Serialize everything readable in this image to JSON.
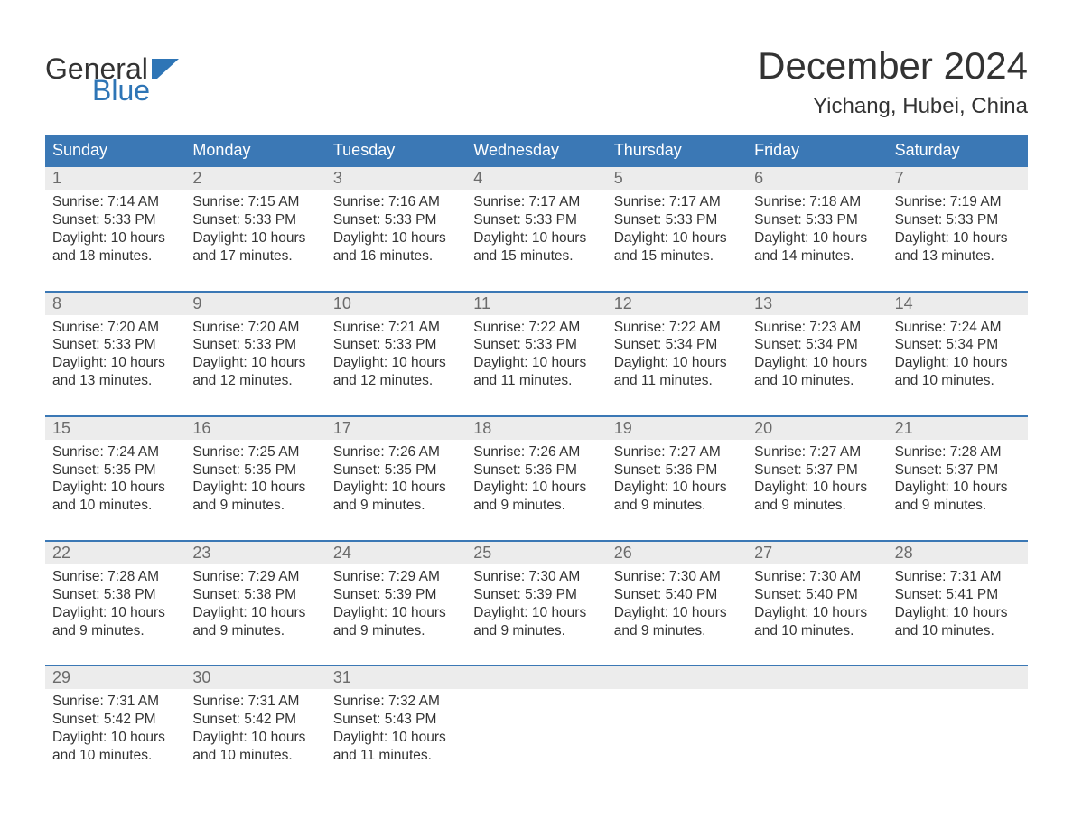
{
  "brand": {
    "general": "General",
    "blue": "Blue"
  },
  "title": "December 2024",
  "location": "Yichang, Hubei, China",
  "colors": {
    "header_bg": "#3b78b5",
    "header_text": "#ffffff",
    "daynum_bg": "#ececec",
    "daynum_text": "#6b6b6b",
    "body_text": "#333333",
    "accent": "#2e75b6",
    "week_border": "#3b78b5"
  },
  "weekdays": [
    "Sunday",
    "Monday",
    "Tuesday",
    "Wednesday",
    "Thursday",
    "Friday",
    "Saturday"
  ],
  "days": [
    {
      "n": 1,
      "sunrise": "Sunrise: 7:14 AM",
      "sunset": "Sunset: 5:33 PM",
      "day1": "Daylight: 10 hours",
      "day2": "and 18 minutes."
    },
    {
      "n": 2,
      "sunrise": "Sunrise: 7:15 AM",
      "sunset": "Sunset: 5:33 PM",
      "day1": "Daylight: 10 hours",
      "day2": "and 17 minutes."
    },
    {
      "n": 3,
      "sunrise": "Sunrise: 7:16 AM",
      "sunset": "Sunset: 5:33 PM",
      "day1": "Daylight: 10 hours",
      "day2": "and 16 minutes."
    },
    {
      "n": 4,
      "sunrise": "Sunrise: 7:17 AM",
      "sunset": "Sunset: 5:33 PM",
      "day1": "Daylight: 10 hours",
      "day2": "and 15 minutes."
    },
    {
      "n": 5,
      "sunrise": "Sunrise: 7:17 AM",
      "sunset": "Sunset: 5:33 PM",
      "day1": "Daylight: 10 hours",
      "day2": "and 15 minutes."
    },
    {
      "n": 6,
      "sunrise": "Sunrise: 7:18 AM",
      "sunset": "Sunset: 5:33 PM",
      "day1": "Daylight: 10 hours",
      "day2": "and 14 minutes."
    },
    {
      "n": 7,
      "sunrise": "Sunrise: 7:19 AM",
      "sunset": "Sunset: 5:33 PM",
      "day1": "Daylight: 10 hours",
      "day2": "and 13 minutes."
    },
    {
      "n": 8,
      "sunrise": "Sunrise: 7:20 AM",
      "sunset": "Sunset: 5:33 PM",
      "day1": "Daylight: 10 hours",
      "day2": "and 13 minutes."
    },
    {
      "n": 9,
      "sunrise": "Sunrise: 7:20 AM",
      "sunset": "Sunset: 5:33 PM",
      "day1": "Daylight: 10 hours",
      "day2": "and 12 minutes."
    },
    {
      "n": 10,
      "sunrise": "Sunrise: 7:21 AM",
      "sunset": "Sunset: 5:33 PM",
      "day1": "Daylight: 10 hours",
      "day2": "and 12 minutes."
    },
    {
      "n": 11,
      "sunrise": "Sunrise: 7:22 AM",
      "sunset": "Sunset: 5:33 PM",
      "day1": "Daylight: 10 hours",
      "day2": "and 11 minutes."
    },
    {
      "n": 12,
      "sunrise": "Sunrise: 7:22 AM",
      "sunset": "Sunset: 5:34 PM",
      "day1": "Daylight: 10 hours",
      "day2": "and 11 minutes."
    },
    {
      "n": 13,
      "sunrise": "Sunrise: 7:23 AM",
      "sunset": "Sunset: 5:34 PM",
      "day1": "Daylight: 10 hours",
      "day2": "and 10 minutes."
    },
    {
      "n": 14,
      "sunrise": "Sunrise: 7:24 AM",
      "sunset": "Sunset: 5:34 PM",
      "day1": "Daylight: 10 hours",
      "day2": "and 10 minutes."
    },
    {
      "n": 15,
      "sunrise": "Sunrise: 7:24 AM",
      "sunset": "Sunset: 5:35 PM",
      "day1": "Daylight: 10 hours",
      "day2": "and 10 minutes."
    },
    {
      "n": 16,
      "sunrise": "Sunrise: 7:25 AM",
      "sunset": "Sunset: 5:35 PM",
      "day1": "Daylight: 10 hours",
      "day2": "and 9 minutes."
    },
    {
      "n": 17,
      "sunrise": "Sunrise: 7:26 AM",
      "sunset": "Sunset: 5:35 PM",
      "day1": "Daylight: 10 hours",
      "day2": "and 9 minutes."
    },
    {
      "n": 18,
      "sunrise": "Sunrise: 7:26 AM",
      "sunset": "Sunset: 5:36 PM",
      "day1": "Daylight: 10 hours",
      "day2": "and 9 minutes."
    },
    {
      "n": 19,
      "sunrise": "Sunrise: 7:27 AM",
      "sunset": "Sunset: 5:36 PM",
      "day1": "Daylight: 10 hours",
      "day2": "and 9 minutes."
    },
    {
      "n": 20,
      "sunrise": "Sunrise: 7:27 AM",
      "sunset": "Sunset: 5:37 PM",
      "day1": "Daylight: 10 hours",
      "day2": "and 9 minutes."
    },
    {
      "n": 21,
      "sunrise": "Sunrise: 7:28 AM",
      "sunset": "Sunset: 5:37 PM",
      "day1": "Daylight: 10 hours",
      "day2": "and 9 minutes."
    },
    {
      "n": 22,
      "sunrise": "Sunrise: 7:28 AM",
      "sunset": "Sunset: 5:38 PM",
      "day1": "Daylight: 10 hours",
      "day2": "and 9 minutes."
    },
    {
      "n": 23,
      "sunrise": "Sunrise: 7:29 AM",
      "sunset": "Sunset: 5:38 PM",
      "day1": "Daylight: 10 hours",
      "day2": "and 9 minutes."
    },
    {
      "n": 24,
      "sunrise": "Sunrise: 7:29 AM",
      "sunset": "Sunset: 5:39 PM",
      "day1": "Daylight: 10 hours",
      "day2": "and 9 minutes."
    },
    {
      "n": 25,
      "sunrise": "Sunrise: 7:30 AM",
      "sunset": "Sunset: 5:39 PM",
      "day1": "Daylight: 10 hours",
      "day2": "and 9 minutes."
    },
    {
      "n": 26,
      "sunrise": "Sunrise: 7:30 AM",
      "sunset": "Sunset: 5:40 PM",
      "day1": "Daylight: 10 hours",
      "day2": "and 9 minutes."
    },
    {
      "n": 27,
      "sunrise": "Sunrise: 7:30 AM",
      "sunset": "Sunset: 5:40 PM",
      "day1": "Daylight: 10 hours",
      "day2": "and 10 minutes."
    },
    {
      "n": 28,
      "sunrise": "Sunrise: 7:31 AM",
      "sunset": "Sunset: 5:41 PM",
      "day1": "Daylight: 10 hours",
      "day2": "and 10 minutes."
    },
    {
      "n": 29,
      "sunrise": "Sunrise: 7:31 AM",
      "sunset": "Sunset: 5:42 PM",
      "day1": "Daylight: 10 hours",
      "day2": "and 10 minutes."
    },
    {
      "n": 30,
      "sunrise": "Sunrise: 7:31 AM",
      "sunset": "Sunset: 5:42 PM",
      "day1": "Daylight: 10 hours",
      "day2": "and 10 minutes."
    },
    {
      "n": 31,
      "sunrise": "Sunrise: 7:32 AM",
      "sunset": "Sunset: 5:43 PM",
      "day1": "Daylight: 10 hours",
      "day2": "and 11 minutes."
    }
  ],
  "layout": {
    "start_weekday_index": 0,
    "weeks": 5
  }
}
